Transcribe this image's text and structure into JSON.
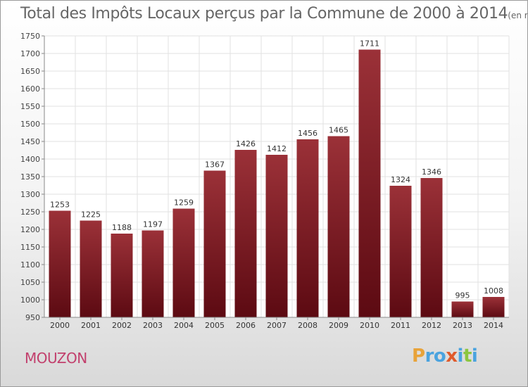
{
  "chart_data": {
    "type": "bar",
    "title": "Total des Impôts Locaux perçus par la Commune de 2000 à 2014",
    "unit": "(en milliers d'€)",
    "categories": [
      "2000",
      "2001",
      "2002",
      "2003",
      "2004",
      "2005",
      "2006",
      "2007",
      "2008",
      "2009",
      "2010",
      "2011",
      "2012",
      "2013",
      "2014"
    ],
    "values": [
      1253,
      1225,
      1188,
      1197,
      1259,
      1367,
      1426,
      1412,
      1456,
      1465,
      1711,
      1324,
      1346,
      995,
      1008
    ],
    "ylim": [
      950,
      1750
    ],
    "yticks": [
      950,
      1000,
      1050,
      1100,
      1150,
      1200,
      1250,
      1300,
      1350,
      1400,
      1450,
      1500,
      1550,
      1600,
      1650,
      1700,
      1750
    ],
    "grid": true,
    "bar_color": "#7a1c22"
  },
  "commune": "MOUZON",
  "brand": {
    "letters": [
      "P",
      "r",
      "o",
      "x",
      "i",
      "t",
      "i"
    ],
    "colors": [
      "#e8a33a",
      "#4aa3df",
      "#4aa3df",
      "#e05a2b",
      "#4aa3df",
      "#8cc63f",
      "#4aa3df"
    ]
  }
}
